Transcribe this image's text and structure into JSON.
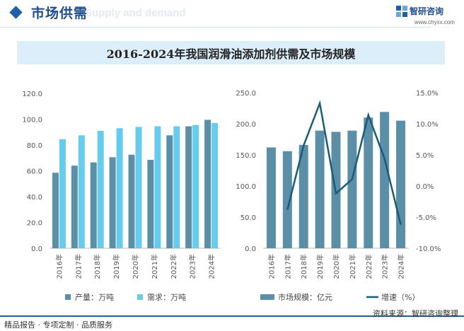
{
  "header": {
    "title": "市场供需",
    "ghost_text": "Supply and demand",
    "logo_name": "智研咨询",
    "logo_url": "www.chyxx.com"
  },
  "chart_title": "2016-2024年我国润滑油添加剂供需及市场规模",
  "chart_data": [
    {
      "type": "bar",
      "categories": [
        "2016年",
        "2017年",
        "2018年",
        "2019年",
        "2020年",
        "2021年",
        "2022年",
        "2023年",
        "2024年"
      ],
      "series": [
        {
          "name": "产量：万吨",
          "color": "#5b8fa8",
          "values": [
            58.5,
            64.0,
            66.5,
            70.5,
            72.5,
            68.5,
            87.5,
            94.5,
            99.5
          ]
        },
        {
          "name": "需求：万吨",
          "color": "#66ccee",
          "values": [
            84.5,
            87.5,
            91.0,
            93.0,
            94.0,
            94.5,
            94.5,
            95.5,
            97.0
          ]
        }
      ],
      "ylim": [
        0,
        120
      ],
      "yticks": [
        "0.0",
        "20.0",
        "40.0",
        "60.0",
        "80.0",
        "100.0",
        "120.0"
      ],
      "legend": "bottom"
    },
    {
      "type": "bar+line",
      "categories": [
        "2016年",
        "2017年",
        "2018年",
        "2019年",
        "2020年",
        "2021年",
        "2022年",
        "2023年",
        "2024年"
      ],
      "bar_series": {
        "name": "市场规模：亿元",
        "color": "#5b8fa8",
        "values": [
          162,
          156,
          166,
          189,
          187,
          189,
          210,
          219,
          205
        ]
      },
      "line_series": {
        "name": "增速（%）",
        "color": "#1b5b7a",
        "values": [
          null,
          -3.8,
          6.5,
          13.3,
          -1.2,
          1.1,
          11.4,
          4.4,
          -6.2
        ]
      },
      "ylim_left": [
        0,
        250
      ],
      "yticks_left": [
        "0.0",
        "50.0",
        "100.0",
        "150.0",
        "200.0",
        "250.0"
      ],
      "ylim_right": [
        -10,
        15
      ],
      "yticks_right": [
        "-10.0%",
        "-5.0%",
        "0.0%",
        "5.0%",
        "10.0%",
        "15.0%"
      ],
      "legend": "bottom"
    }
  ],
  "footer": {
    "left": "精品报告 · 专项定制 · 品质服务",
    "right": "资料来源：智研咨询整理"
  },
  "colors": {
    "accent": "#1f5fa8",
    "title_bg": "#dceefa"
  }
}
